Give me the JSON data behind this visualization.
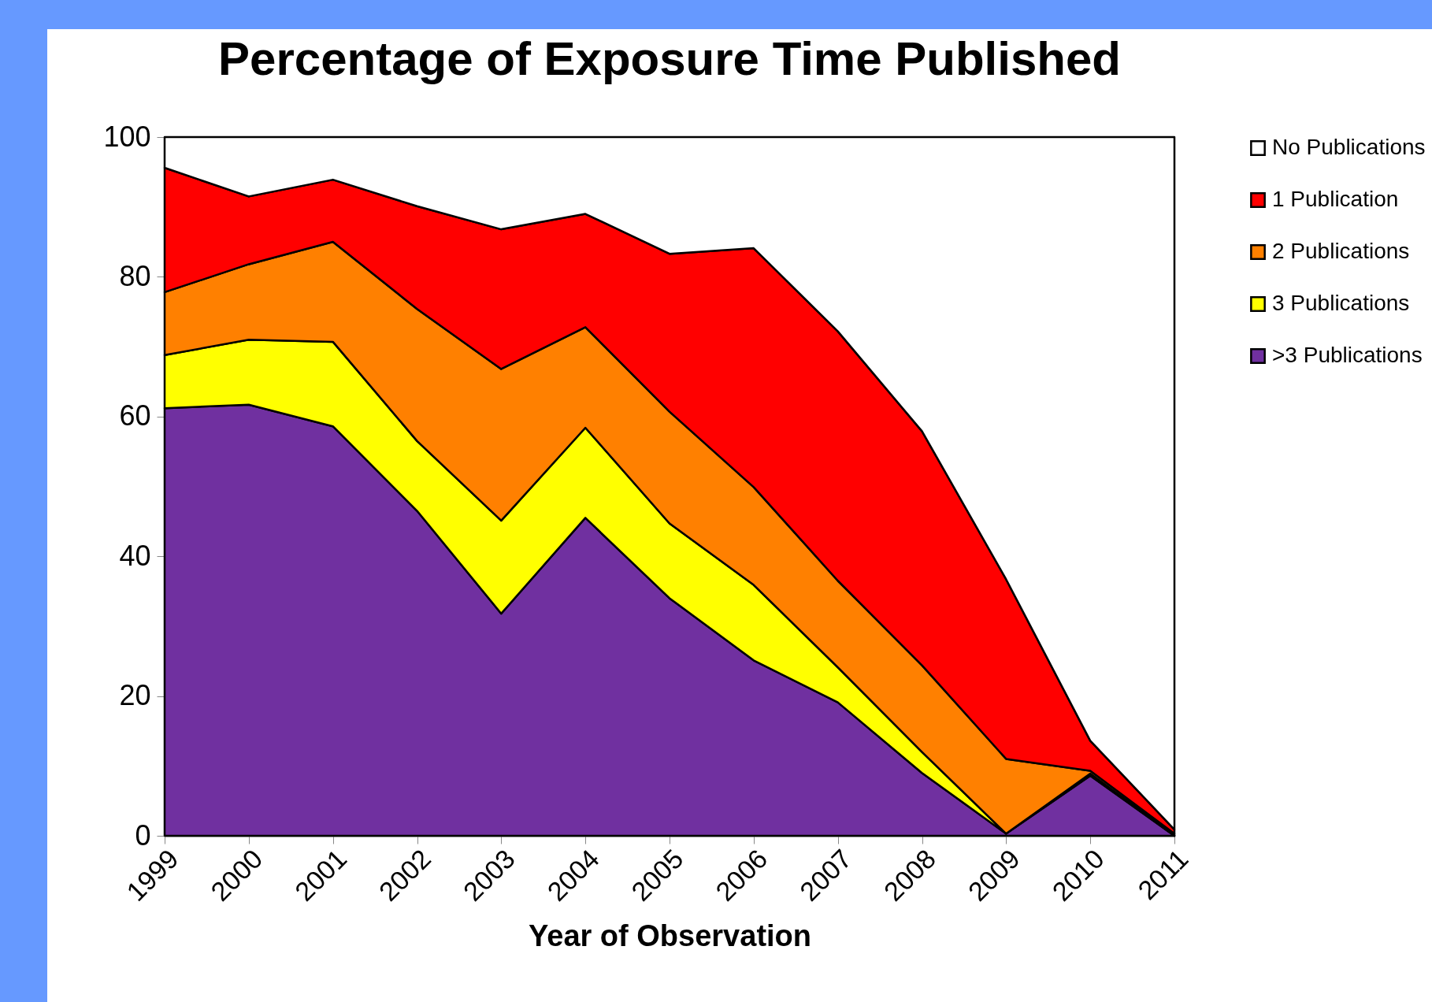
{
  "chart_data": {
    "type": "area",
    "title": "Percentage of Exposure Time Published",
    "xlabel": "Year of Observation",
    "stacked": true,
    "legend": "right",
    "categories": [
      "1999",
      "2000",
      "2001",
      "2002",
      "2003",
      "2004",
      "2005",
      "2006",
      "2007",
      "2008",
      "2009",
      "2010",
      "2011"
    ],
    "ylim": [
      0,
      100
    ],
    "yticks": [
      0,
      20,
      40,
      60,
      80,
      100
    ],
    "series": [
      {
        "name": ">3 Publications",
        "color": "#7030a0",
        "values": [
          61.2,
          61.7,
          58.6,
          46.5,
          31.8,
          45.5,
          34.0,
          25.1,
          19.1,
          9.0,
          0.3,
          8.6,
          0
        ]
      },
      {
        "name": "3 Publications",
        "color": "#ffff00",
        "values": [
          7.6,
          9.3,
          12.1,
          10.0,
          13.3,
          12.9,
          10.7,
          10.8,
          5.0,
          3.0,
          0,
          0.3,
          0
        ]
      },
      {
        "name": "2 Publications",
        "color": "#ff8000",
        "values": [
          9.0,
          10.8,
          14.3,
          18.9,
          21.7,
          14.4,
          16.0,
          14.0,
          12.4,
          12.4,
          10.7,
          0.4,
          0.3
        ]
      },
      {
        "name": "1 Publication",
        "color": "#ff0000",
        "values": [
          17.8,
          9.7,
          8.9,
          14.7,
          20.0,
          16.2,
          22.6,
          34.2,
          35.7,
          33.5,
          25.7,
          4.3,
          0.6
        ]
      },
      {
        "name": "No Publications",
        "color": "#ffffff",
        "values": [
          4.4,
          8.5,
          6.1,
          9.9,
          13.2,
          11.0,
          16.7,
          15.9,
          27.8,
          42.1,
          63.3,
          86.4,
          99.1
        ]
      }
    ]
  }
}
